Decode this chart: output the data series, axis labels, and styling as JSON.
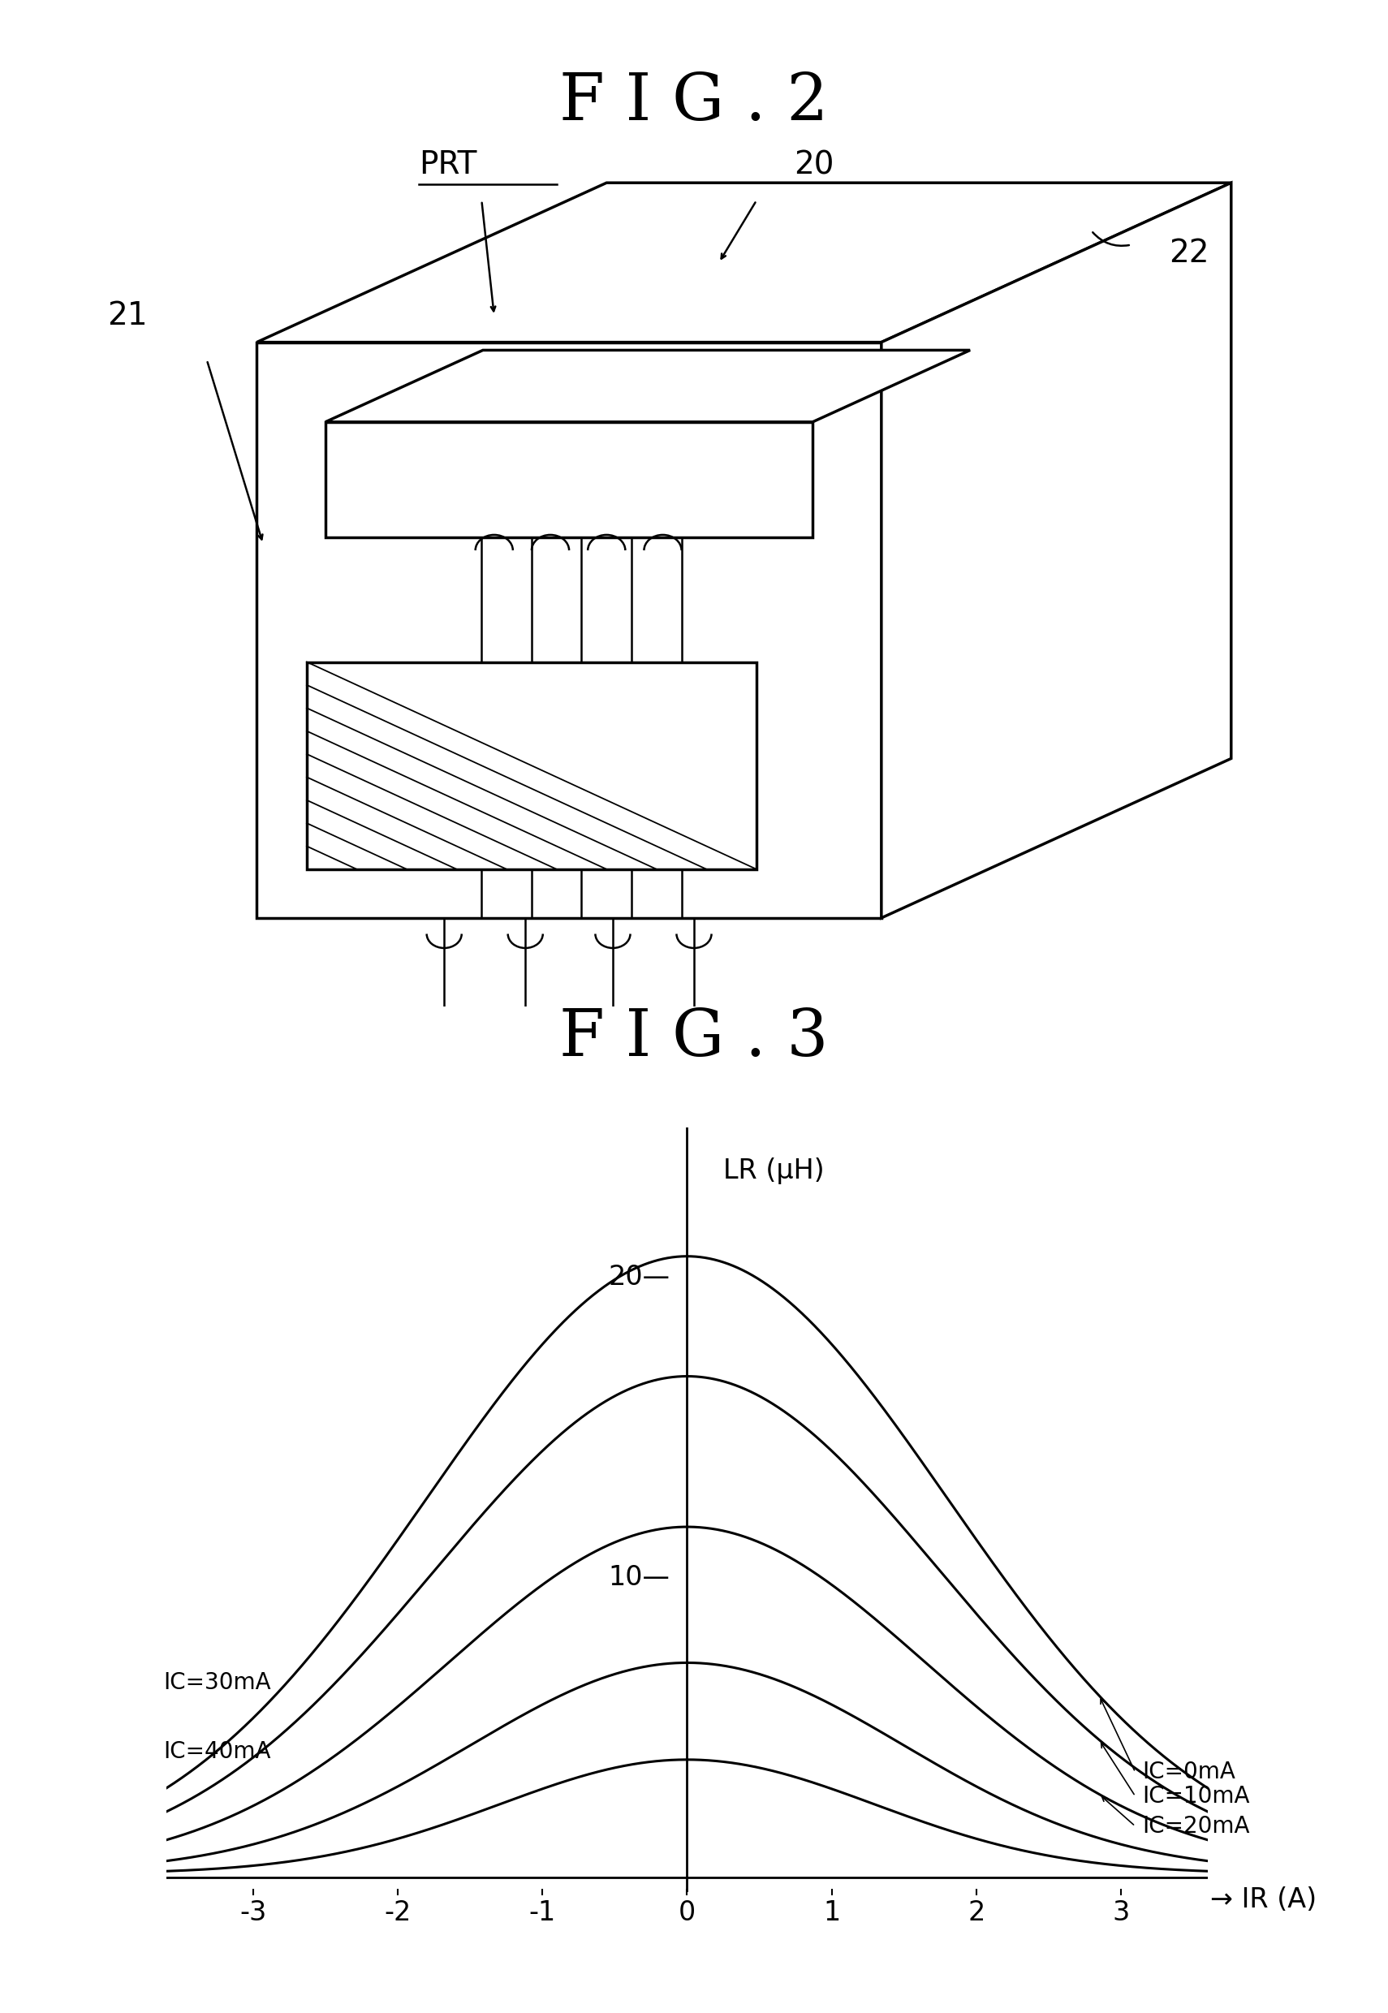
{
  "fig2_title": "F I G . 2",
  "fig3_title": "F I G . 3",
  "background_color": "#ffffff",
  "line_color": "#000000",
  "curve_params": [
    {
      "IC": 0,
      "label": "IC=0mA",
      "peak": 20.5,
      "sigma": 1.8,
      "base": 0.2
    },
    {
      "IC": 10,
      "label": "IC=10mA",
      "peak": 16.5,
      "sigma": 1.75,
      "base": 0.2
    },
    {
      "IC": 20,
      "label": "IC=20mA",
      "peak": 11.5,
      "sigma": 1.65,
      "base": 0.18
    },
    {
      "IC": 30,
      "label": "IC=30mA",
      "peak": 7.0,
      "sigma": 1.5,
      "base": 0.15
    },
    {
      "IC": 40,
      "label": "IC=40mA",
      "peak": 3.8,
      "sigma": 1.3,
      "base": 0.12
    }
  ],
  "xlim": [
    -3.6,
    3.6
  ],
  "ylim": [
    -0.5,
    25.0
  ],
  "xticks": [
    -3,
    -2,
    -1,
    0,
    1,
    2,
    3
  ],
  "xlabel": "→ IR (A)",
  "ylabel": "LR (μH)",
  "ytick_labels": [
    "10",
    "20"
  ],
  "ytick_vals": [
    10,
    20
  ]
}
